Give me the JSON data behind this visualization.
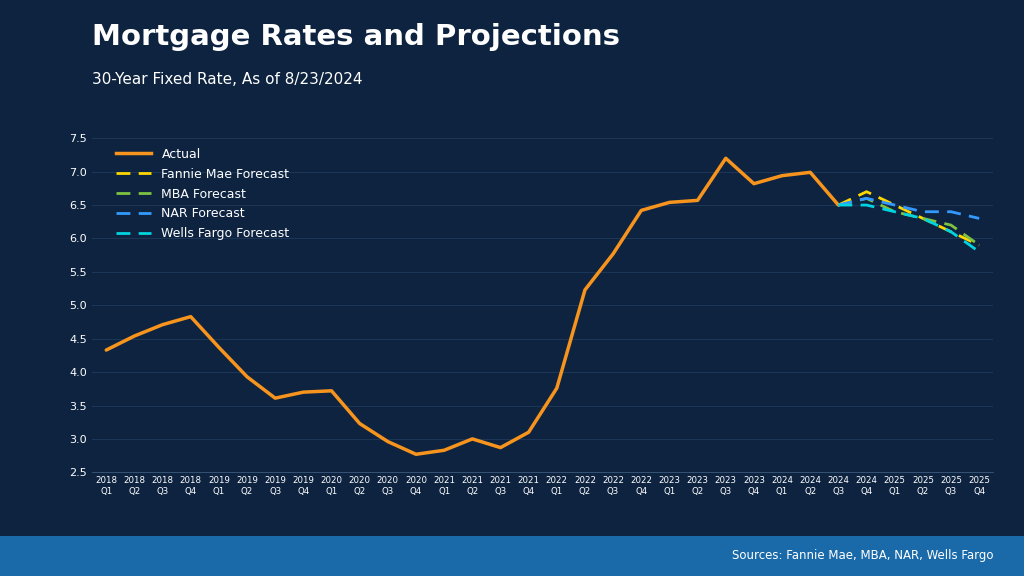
{
  "title": "Mortgage Rates and Projections",
  "subtitle": "30-Year Fixed Rate, As of 8/23/2024",
  "source": "Sources: Fannie Mae, MBA, NAR, Wells Fargo",
  "background_color": "#0d2340",
  "plot_bg_color": "#0d2340",
  "text_color": "#ffffff",
  "grid_color": "#1e3a5c",
  "bottom_bar_color": "#1a6aaa",
  "ylim": [
    2.5,
    7.5
  ],
  "yticks": [
    2.5,
    3.0,
    3.5,
    4.0,
    4.5,
    5.0,
    5.5,
    6.0,
    6.5,
    7.0,
    7.5
  ],
  "actual_color": "#f7941d",
  "fannie_color": "#ffd700",
  "mba_color": "#7dc242",
  "nar_color": "#3399ff",
  "wells_color": "#00d4e0",
  "actual_x": [
    "2018Q1",
    "2018Q2",
    "2018Q3",
    "2018Q4",
    "2019Q1",
    "2019Q2",
    "2019Q3",
    "2019Q4",
    "2020Q1",
    "2020Q2",
    "2020Q3",
    "2020Q4",
    "2021Q1",
    "2021Q2",
    "2021Q3",
    "2021Q4",
    "2022Q1",
    "2022Q2",
    "2022Q3",
    "2022Q4",
    "2023Q1",
    "2023Q2",
    "2023Q3",
    "2023Q4",
    "2024Q1",
    "2024Q2",
    "2024Q3"
  ],
  "actual_y": [
    4.33,
    4.54,
    4.71,
    4.83,
    4.37,
    3.93,
    3.61,
    3.7,
    3.72,
    3.23,
    2.96,
    2.77,
    2.83,
    3.0,
    2.87,
    3.1,
    3.76,
    5.23,
    5.77,
    6.42,
    6.54,
    6.57,
    7.2,
    6.82,
    6.94,
    6.99,
    6.5
  ],
  "forecast_x": [
    "2024Q3",
    "2024Q4",
    "2025Q1",
    "2025Q2",
    "2025Q3",
    "2025Q4"
  ],
  "fannie_y": [
    6.5,
    6.7,
    6.5,
    6.3,
    6.1,
    5.9
  ],
  "mba_y": [
    6.5,
    6.6,
    6.4,
    6.3,
    6.2,
    5.9
  ],
  "nar_y": [
    6.5,
    6.6,
    6.5,
    6.4,
    6.4,
    6.3
  ],
  "wells_y": [
    6.5,
    6.5,
    6.4,
    6.3,
    6.1,
    5.8
  ]
}
